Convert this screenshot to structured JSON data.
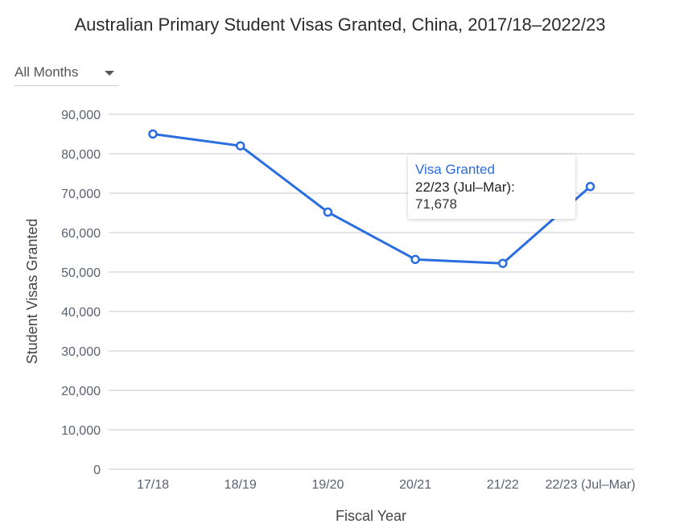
{
  "filter": {
    "selected": "All Months"
  },
  "tooltip": {
    "series": "Visa Granted",
    "category": "22/23 (Jul–Mar):",
    "value": "71,678"
  },
  "colors": {
    "line": "#2a6de0",
    "grid": "#c8cad0",
    "axis_text": "#5a6170"
  },
  "chart_data": {
    "type": "line",
    "title": "Australian Primary Student Visas Granted, China, 2017/18–2022/23",
    "xlabel": "Fiscal Year",
    "ylabel": "Student Visas Granted",
    "categories": [
      "17/18",
      "18/19",
      "19/20",
      "20/21",
      "21/22",
      "22/23 (Jul–Mar)"
    ],
    "series": [
      {
        "name": "Visa Granted",
        "values": [
          85000,
          82000,
          65200,
          53200,
          52200,
          71678
        ]
      }
    ],
    "ylim": [
      0,
      90000
    ],
    "yticks": [
      0,
      10000,
      20000,
      30000,
      40000,
      50000,
      60000,
      70000,
      80000,
      90000
    ],
    "ytick_labels": [
      "0",
      "10,000",
      "20,000",
      "30,000",
      "40,000",
      "50,000",
      "60,000",
      "70,000",
      "80,000",
      "90,000"
    ],
    "grid": true
  }
}
